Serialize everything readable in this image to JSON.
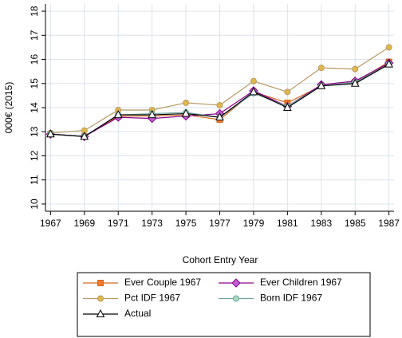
{
  "chart_data": {
    "type": "line",
    "x_label": "Cohort Entry Year",
    "y_label": "000€ (2015)",
    "x": [
      1967,
      1969,
      1971,
      1973,
      1975,
      1977,
      1979,
      1981,
      1983,
      1985,
      1987
    ],
    "xlim": [
      1966.7,
      1987.3
    ],
    "xticks": [
      1967,
      1969,
      1971,
      1973,
      1975,
      1977,
      1979,
      1981,
      1983,
      1985,
      1987
    ],
    "ylim": [
      9.7,
      18.3
    ],
    "yticks": [
      10,
      11,
      12,
      13,
      14,
      15,
      16,
      17,
      18
    ],
    "grid": true,
    "series": [
      {
        "name": "Ever Couple 1967",
        "color": "#d2691e",
        "marker": "square",
        "marker_color": "#f07a2a",
        "values": [
          12.9,
          12.8,
          13.65,
          13.65,
          13.7,
          13.5,
          14.65,
          14.2,
          14.9,
          15.05,
          15.9
        ]
      },
      {
        "name": "Ever Children 1967",
        "color": "#8b008b",
        "marker": "diamond",
        "marker_color": "#c060d0",
        "values": [
          12.9,
          12.8,
          13.6,
          13.55,
          13.65,
          13.75,
          14.7,
          14.05,
          14.95,
          15.1,
          15.85
        ]
      },
      {
        "name": "Pct IDF 1967",
        "color": "#b89a63",
        "marker": "circle",
        "marker_color": "#e0b84a",
        "values": [
          12.95,
          13.05,
          13.9,
          13.9,
          14.2,
          14.1,
          15.1,
          14.65,
          15.65,
          15.6,
          16.5
        ]
      },
      {
        "name": "Born IDF 1967",
        "color": "#6fa3a0",
        "marker": "circle",
        "marker_color": "#a8dcc0",
        "values": [
          12.9,
          12.8,
          13.7,
          13.75,
          13.8,
          13.6,
          14.6,
          14.05,
          14.9,
          15.05,
          15.8
        ]
      },
      {
        "name": "Actual",
        "color": "#000000",
        "marker": "triangle",
        "marker_color": "#ffffff",
        "values": [
          12.9,
          12.8,
          13.7,
          13.7,
          13.75,
          13.6,
          14.65,
          14.0,
          14.9,
          15.0,
          15.8
        ]
      }
    ]
  }
}
